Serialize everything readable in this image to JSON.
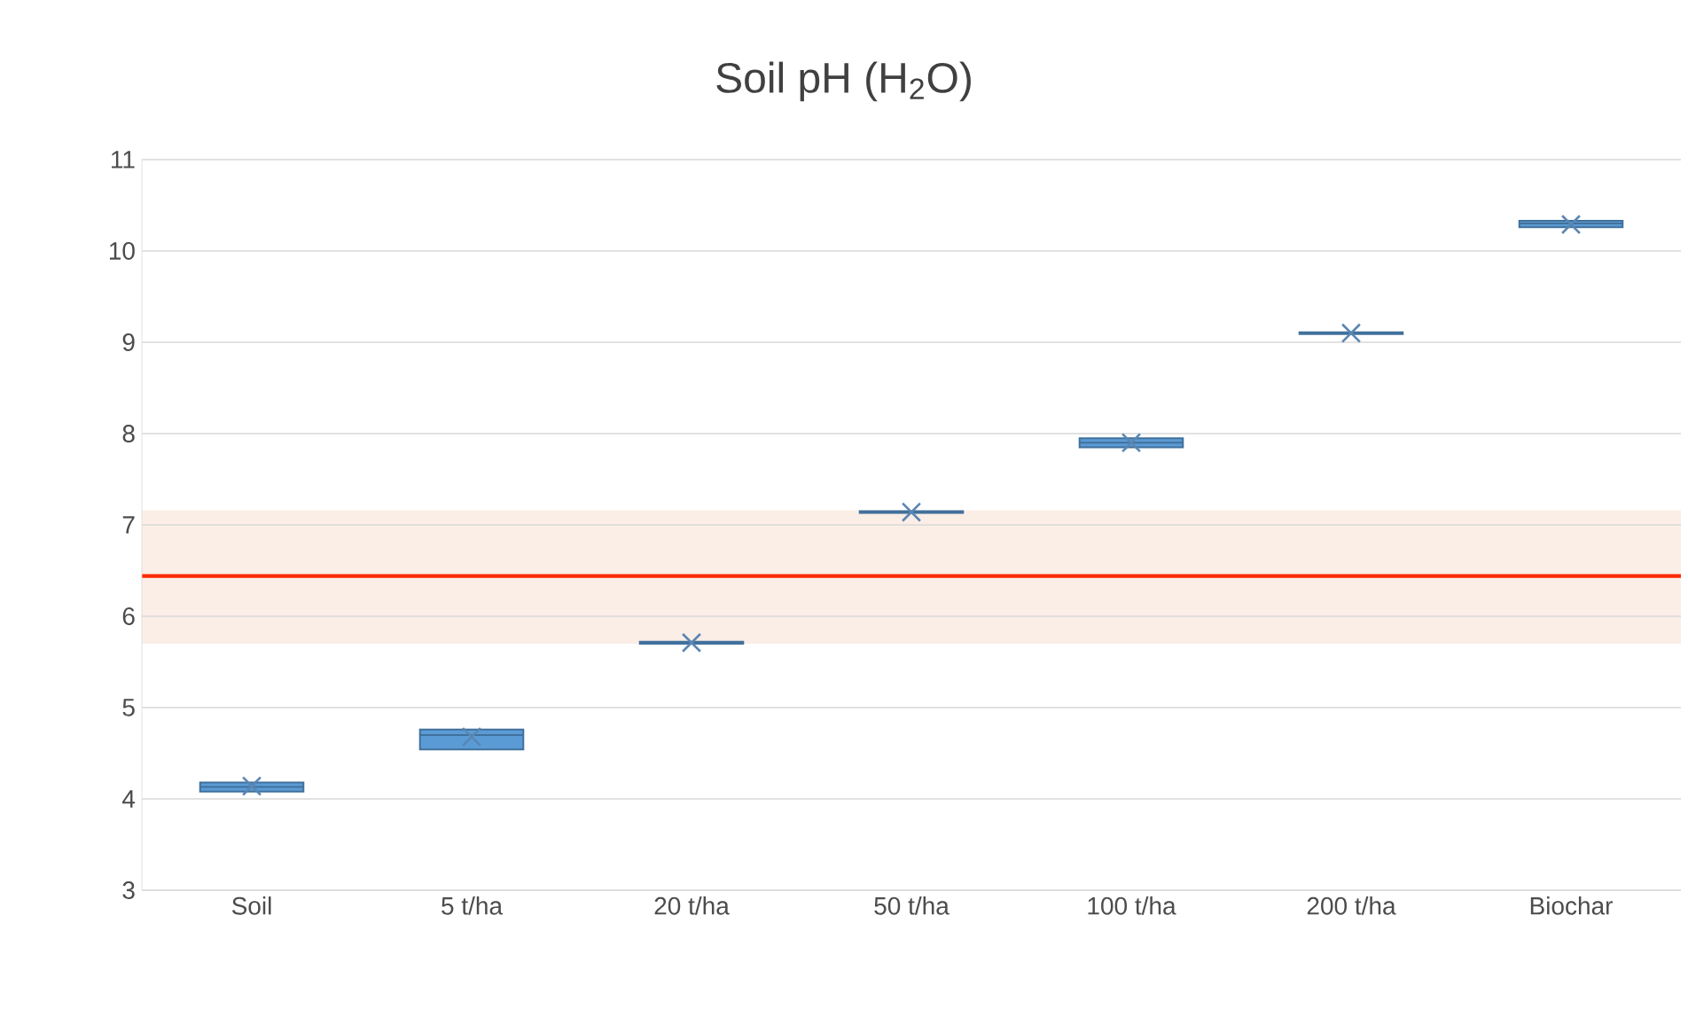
{
  "chart_data": {
    "type": "box",
    "title": "Soil pH (H$_{2}$O)",
    "categories": [
      "Soil",
      "5 t/ha",
      "20 t/ha",
      "50 t/ha",
      "100 t/ha",
      "200 t/ha",
      "Biochar"
    ],
    "boxes": [
      {
        "low": 4.08,
        "q1": 4.08,
        "median": 4.13,
        "q3": 4.18,
        "high": 4.18,
        "mean": 4.14
      },
      {
        "low": 4.54,
        "q1": 4.54,
        "median": 4.7,
        "q3": 4.76,
        "high": 4.76,
        "mean": 4.68
      },
      {
        "low": 5.7,
        "q1": 5.7,
        "median": 5.71,
        "q3": 5.72,
        "high": 5.72,
        "mean": 5.71
      },
      {
        "low": 7.13,
        "q1": 7.13,
        "median": 7.14,
        "q3": 7.15,
        "high": 7.15,
        "mean": 7.14
      },
      {
        "low": 7.85,
        "q1": 7.85,
        "median": 7.9,
        "q3": 7.95,
        "high": 7.95,
        "mean": 7.9
      },
      {
        "low": 9.09,
        "q1": 9.09,
        "median": 9.1,
        "q3": 9.11,
        "high": 9.11,
        "mean": 9.1
      },
      {
        "low": 10.26,
        "q1": 10.26,
        "median": 10.3,
        "q3": 10.33,
        "high": 10.33,
        "mean": 10.29
      }
    ],
    "color": "#5b9bd5",
    "marker": "cross",
    "ref_lines": [
      {
        "axis": "y",
        "value": 6.44,
        "color": "#ff2a00"
      }
    ],
    "bands": [
      {
        "axis": "y",
        "from": 5.7,
        "to": 7.16,
        "color": "#fbeee6"
      }
    ],
    "ylim": [
      3,
      11
    ],
    "yticks": [
      3,
      4,
      5,
      6,
      7,
      8,
      9,
      10,
      11
    ],
    "grid": "y"
  }
}
